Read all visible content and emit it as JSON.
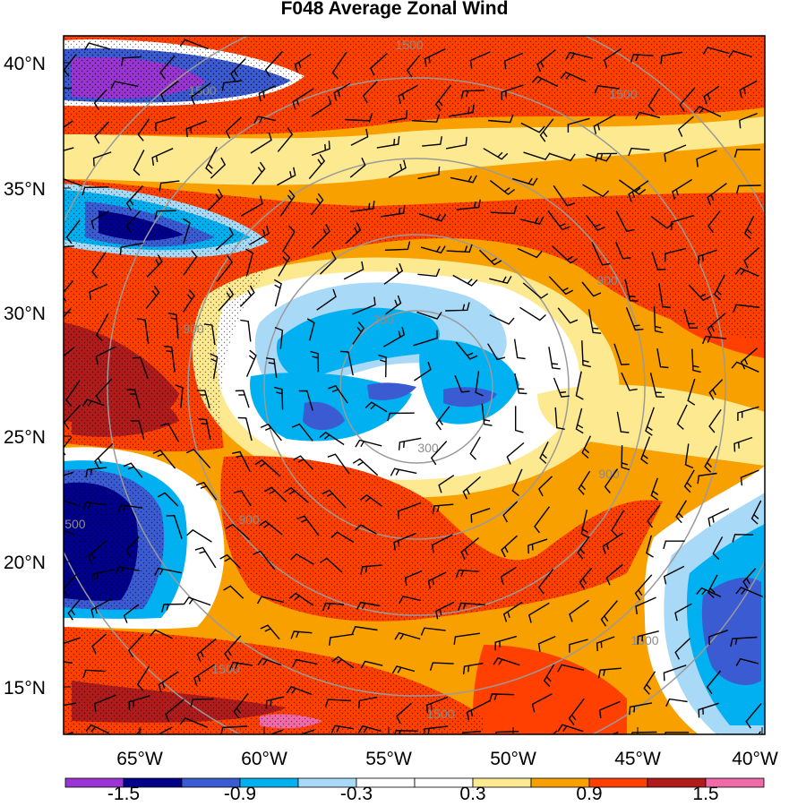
{
  "title": "F048 Average Zonal Wind",
  "lat_labels": [
    "40°N",
    "35°N",
    "30°N",
    "25°N",
    "20°N",
    "15°N"
  ],
  "lon_labels": [
    "65°W",
    "60°W",
    "55°W",
    "50°W",
    "45°W",
    "40°W"
  ],
  "colorbar": {
    "colors": [
      "#9b34d4",
      "#00008b",
      "#3a5bd2",
      "#00b0f0",
      "#a8daf7",
      "#ffffff",
      "#ffffff",
      "#fde98f",
      "#f8a000",
      "#ff4000",
      "#b01c1c",
      "#f06aa8"
    ],
    "labels": [
      "-1.5",
      "-0.9",
      "-0.3",
      "0.3",
      "0.9",
      "1.5"
    ]
  },
  "range_rings": {
    "labels": [
      "300",
      "300",
      "900",
      "900",
      "900",
      "900",
      "1500",
      "1500",
      "1500",
      "1500",
      "1500",
      "1500",
      "1500"
    ]
  },
  "colors": {
    "ring": "#9a9a9a",
    "barb": "#000000",
    "frame": "#000000"
  }
}
